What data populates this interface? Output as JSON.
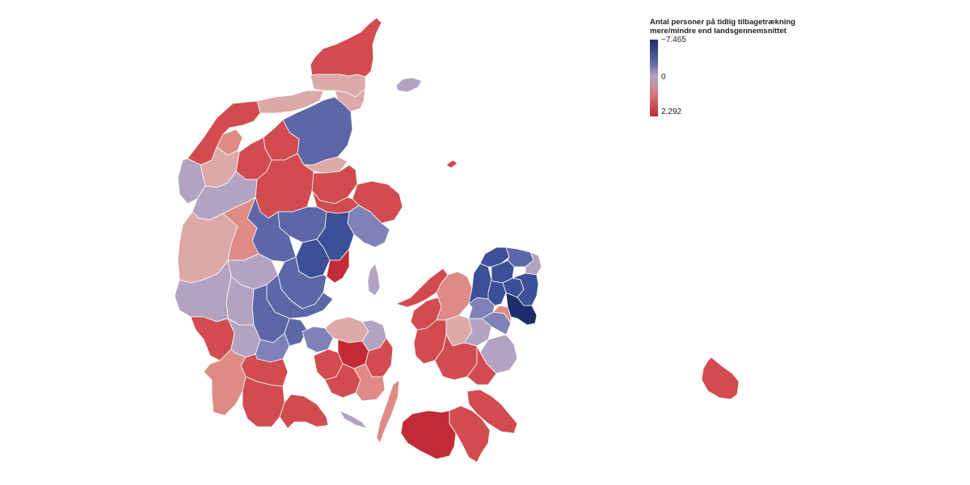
{
  "legend": {
    "title_line1": "Antal personer på tidlig tilbagetrækning",
    "title_line2": "mere/mindre end landsgennemsnittet",
    "max_label": "−7.465",
    "mid_label": "0",
    "min_label": "2.292",
    "scale_max": -7465,
    "scale_mid": 0,
    "scale_min": 2292
  },
  "colors": {
    "dark_blue": "#1f2d6b",
    "blue": "#3d4f96",
    "mid_blue": "#5c67a8",
    "light_blue": "#7f82b8",
    "mauve": "#b4a3c0",
    "light_pink": "#dca8a8",
    "salmon": "#e08a86",
    "red": "#d14b4f",
    "dark_red": "#c22a36",
    "background": "#ffffff"
  },
  "regions": [
    {
      "id": "thisted",
      "color": "red"
    },
    {
      "id": "morsoe",
      "color": "salmon"
    },
    {
      "id": "skive",
      "color": "red"
    },
    {
      "id": "viborg",
      "color": "red"
    },
    {
      "id": "vesthimmerland",
      "color": "red"
    },
    {
      "id": "jammerbugt",
      "color": "light_pink"
    },
    {
      "id": "hjoerring",
      "color": "light_pink"
    },
    {
      "id": "frederikshavn",
      "color": "red"
    },
    {
      "id": "broenderslev",
      "color": "light_pink"
    },
    {
      "id": "aalborg",
      "color": "mid_blue"
    },
    {
      "id": "rebild",
      "color": "light_pink"
    },
    {
      "id": "mariagerfjord",
      "color": "red"
    },
    {
      "id": "randers",
      "color": "red"
    },
    {
      "id": "norddjurs",
      "color": "red"
    },
    {
      "id": "syddjurs",
      "color": "light_blue"
    },
    {
      "id": "favrskov",
      "color": "mid_blue"
    },
    {
      "id": "aarhus",
      "color": "blue"
    },
    {
      "id": "skanderborg",
      "color": "blue"
    },
    {
      "id": "odder",
      "color": "dark_red"
    },
    {
      "id": "silkeborg",
      "color": "mid_blue"
    },
    {
      "id": "horsens",
      "color": "mid_blue"
    },
    {
      "id": "struer",
      "color": "light_pink"
    },
    {
      "id": "lemvig",
      "color": "mauve"
    },
    {
      "id": "holstebro",
      "color": "mauve"
    },
    {
      "id": "ringkoebing_skjern",
      "color": "light_pink"
    },
    {
      "id": "herning",
      "color": "salmon"
    },
    {
      "id": "ikast_brande",
      "color": "mauve"
    },
    {
      "id": "hedensted",
      "color": "mid_blue"
    },
    {
      "id": "vejle",
      "color": "mid_blue"
    },
    {
      "id": "billund",
      "color": "mauve"
    },
    {
      "id": "varde",
      "color": "mauve"
    },
    {
      "id": "esbjerg",
      "color": "red"
    },
    {
      "id": "vejen",
      "color": "mauve"
    },
    {
      "id": "fredericia",
      "color": "mid_blue"
    },
    {
      "id": "kolding",
      "color": "light_blue"
    },
    {
      "id": "haderslev",
      "color": "red"
    },
    {
      "id": "tonder",
      "color": "salmon"
    },
    {
      "id": "aabenraa",
      "color": "red"
    },
    {
      "id": "soenderborg",
      "color": "red"
    },
    {
      "id": "middelfart",
      "color": "light_blue"
    },
    {
      "id": "nordfyn",
      "color": "light_pink"
    },
    {
      "id": "odense",
      "color": "dark_red"
    },
    {
      "id": "kerteminde",
      "color": "mauve"
    },
    {
      "id": "assens",
      "color": "red"
    },
    {
      "id": "faaborg",
      "color": "red"
    },
    {
      "id": "nyborg",
      "color": "red"
    },
    {
      "id": "svendborg",
      "color": "salmon"
    },
    {
      "id": "langeland",
      "color": "salmon"
    },
    {
      "id": "aeroe",
      "color": "mauve"
    },
    {
      "id": "samsoe",
      "color": "mauve"
    },
    {
      "id": "laesoe",
      "color": "mauve"
    },
    {
      "id": "anholt",
      "color": "red"
    },
    {
      "id": "odsherred",
      "color": "red"
    },
    {
      "id": "kalundborg",
      "color": "red"
    },
    {
      "id": "holbaek",
      "color": "salmon"
    },
    {
      "id": "soroe",
      "color": "light_pink"
    },
    {
      "id": "slagelse",
      "color": "red"
    },
    {
      "id": "ringsted",
      "color": "mauve"
    },
    {
      "id": "naestved",
      "color": "red"
    },
    {
      "id": "koege",
      "color": "light_blue"
    },
    {
      "id": "stevns",
      "color": "mauve"
    },
    {
      "id": "faxe",
      "color": "red"
    },
    {
      "id": "vordingborg",
      "color": "red"
    },
    {
      "id": "lolland",
      "color": "dark_red"
    },
    {
      "id": "guldborgsund",
      "color": "red"
    },
    {
      "id": "roskilde",
      "color": "light_blue"
    },
    {
      "id": "frederikssund",
      "color": "blue"
    },
    {
      "id": "halsnaes",
      "color": "blue"
    },
    {
      "id": "gribskov",
      "color": "mid_blue"
    },
    {
      "id": "helsingoer",
      "color": "mauve"
    },
    {
      "id": "hilleroed",
      "color": "blue"
    },
    {
      "id": "egedal",
      "color": "blue"
    },
    {
      "id": "furesoe",
      "color": "blue"
    },
    {
      "id": "copenhagen_suburbs",
      "color": "blue"
    },
    {
      "id": "copenhagen",
      "color": "dark_blue"
    },
    {
      "id": "greve",
      "color": "salmon"
    },
    {
      "id": "bornholm",
      "color": "red"
    }
  ]
}
